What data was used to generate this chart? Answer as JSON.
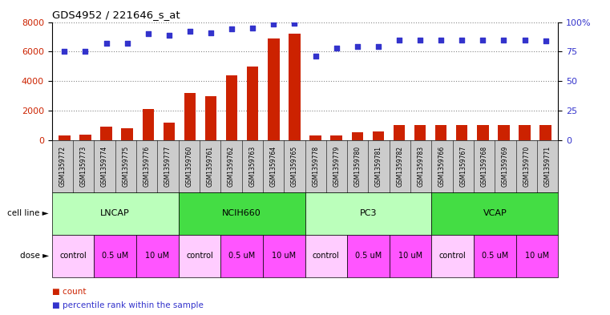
{
  "title": "GDS4952 / 221646_s_at",
  "samples": [
    "GSM1359772",
    "GSM1359773",
    "GSM1359774",
    "GSM1359775",
    "GSM1359776",
    "GSM1359777",
    "GSM1359760",
    "GSM1359761",
    "GSM1359762",
    "GSM1359763",
    "GSM1359764",
    "GSM1359765",
    "GSM1359778",
    "GSM1359779",
    "GSM1359780",
    "GSM1359781",
    "GSM1359782",
    "GSM1359783",
    "GSM1359766",
    "GSM1359767",
    "GSM1359768",
    "GSM1359769",
    "GSM1359770",
    "GSM1359771"
  ],
  "counts": [
    300,
    350,
    900,
    800,
    2100,
    1200,
    3200,
    3000,
    4400,
    5000,
    6900,
    7200,
    300,
    300,
    550,
    600,
    1050,
    1050,
    1050,
    1050,
    1050,
    1050,
    1050,
    1000
  ],
  "percentile": [
    75,
    75,
    82,
    82,
    90,
    89,
    92,
    91,
    94,
    95,
    98,
    99,
    71,
    78,
    79,
    79,
    85,
    85,
    85,
    85,
    85,
    85,
    85,
    84
  ],
  "cell_lines": [
    {
      "label": "LNCAP",
      "start": 0,
      "end": 6,
      "color": "#bbffbb"
    },
    {
      "label": "NCIH660",
      "start": 6,
      "end": 12,
      "color": "#44dd44"
    },
    {
      "label": "PC3",
      "start": 12,
      "end": 18,
      "color": "#bbffbb"
    },
    {
      "label": "VCAP",
      "start": 18,
      "end": 24,
      "color": "#44dd44"
    }
  ],
  "doses": [
    {
      "label": "control",
      "start": 0,
      "end": 2,
      "color": "#ffccff"
    },
    {
      "label": "0.5 uM",
      "start": 2,
      "end": 4,
      "color": "#ff55ff"
    },
    {
      "label": "10 uM",
      "start": 4,
      "end": 6,
      "color": "#ff55ff"
    },
    {
      "label": "control",
      "start": 6,
      "end": 8,
      "color": "#ffccff"
    },
    {
      "label": "0.5 uM",
      "start": 8,
      "end": 10,
      "color": "#ff55ff"
    },
    {
      "label": "10 uM",
      "start": 10,
      "end": 12,
      "color": "#ff55ff"
    },
    {
      "label": "control",
      "start": 12,
      "end": 14,
      "color": "#ffccff"
    },
    {
      "label": "0.5 uM",
      "start": 14,
      "end": 16,
      "color": "#ff55ff"
    },
    {
      "label": "10 uM",
      "start": 16,
      "end": 18,
      "color": "#ff55ff"
    },
    {
      "label": "control",
      "start": 18,
      "end": 20,
      "color": "#ffccff"
    },
    {
      "label": "0.5 uM",
      "start": 20,
      "end": 22,
      "color": "#ff55ff"
    },
    {
      "label": "10 uM",
      "start": 22,
      "end": 24,
      "color": "#ff55ff"
    }
  ],
  "bar_color": "#cc2200",
  "dot_color": "#3333cc",
  "ylim_left": [
    0,
    8000
  ],
  "ylim_right": [
    0,
    100
  ],
  "yticks_left": [
    0,
    2000,
    4000,
    6000,
    8000
  ],
  "yticks_right": [
    0,
    25,
    50,
    75,
    100
  ],
  "ytick_right_labels": [
    "0",
    "25",
    "50",
    "75",
    "100%"
  ],
  "background_color": "#ffffff",
  "grid_color": "#888888",
  "sample_box_color": "#cccccc"
}
